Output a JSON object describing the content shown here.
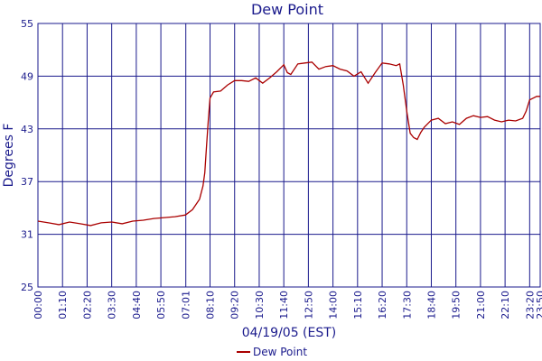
{
  "chart_data": {
    "type": "line",
    "title": "Dew Point",
    "xlabel": "04/19/05 (EST)",
    "ylabel": "Degrees F",
    "ylim": [
      25,
      55
    ],
    "yticks": [
      25,
      31,
      37,
      43,
      49,
      55
    ],
    "x_tick_labels": [
      "00:00",
      "01:10",
      "02:20",
      "03:30",
      "04:40",
      "05:50",
      "07:01",
      "08:10",
      "09:20",
      "10:30",
      "11:40",
      "12:50",
      "14:00",
      "15:10",
      "16:20",
      "17:30",
      "18:40",
      "19:50",
      "21:00",
      "22:10",
      "23:20",
      "23:50"
    ],
    "x_range_minutes": [
      0,
      1430
    ],
    "grid": true,
    "legend_position": "bottom-center",
    "colors": {
      "series": "#aa0000",
      "grid": "#1a1a8c",
      "text": "#1a1a8c"
    },
    "series": [
      {
        "name": "Dew Point",
        "x": [
          "00:00",
          "00:30",
          "01:00",
          "01:30",
          "02:00",
          "02:30",
          "03:00",
          "03:30",
          "04:00",
          "04:30",
          "05:00",
          "05:30",
          "06:00",
          "06:30",
          "07:00",
          "07:20",
          "07:40",
          "07:50",
          "07:55",
          "08:00",
          "08:05",
          "08:10",
          "08:20",
          "08:40",
          "09:00",
          "09:20",
          "09:40",
          "10:00",
          "10:20",
          "10:40",
          "11:00",
          "11:20",
          "11:40",
          "11:50",
          "12:00",
          "12:20",
          "12:40",
          "13:00",
          "13:20",
          "13:40",
          "14:00",
          "14:20",
          "14:40",
          "15:00",
          "15:20",
          "15:40",
          "16:00",
          "16:20",
          "16:40",
          "17:00",
          "17:10",
          "17:20",
          "17:30",
          "17:40",
          "17:50",
          "18:00",
          "18:10",
          "18:20",
          "18:40",
          "19:00",
          "19:20",
          "19:40",
          "20:00",
          "20:20",
          "20:40",
          "21:00",
          "21:20",
          "21:40",
          "22:00",
          "22:20",
          "22:40",
          "23:00",
          "23:10",
          "23:20",
          "23:40",
          "23:50"
        ],
        "values": [
          32.5,
          32.3,
          32.1,
          32.4,
          32.2,
          32.0,
          32.3,
          32.4,
          32.2,
          32.5,
          32.6,
          32.8,
          32.9,
          33.0,
          33.2,
          33.8,
          35.0,
          36.5,
          38.0,
          41.0,
          44.0,
          46.5,
          47.2,
          47.3,
          48.0,
          48.5,
          48.5,
          48.4,
          48.8,
          48.2,
          48.8,
          49.5,
          50.3,
          49.4,
          49.2,
          50.4,
          50.5,
          50.6,
          49.8,
          50.1,
          50.2,
          49.8,
          49.6,
          49.0,
          49.5,
          48.2,
          49.4,
          50.5,
          50.4,
          50.2,
          50.4,
          48.0,
          45.0,
          42.5,
          42.0,
          41.8,
          42.6,
          43.2,
          44.0,
          44.2,
          43.6,
          43.8,
          43.5,
          44.2,
          44.5,
          44.3,
          44.4,
          44.0,
          43.8,
          44.0,
          43.9,
          44.2,
          45.0,
          46.3,
          46.7,
          46.7
        ]
      }
    ]
  }
}
